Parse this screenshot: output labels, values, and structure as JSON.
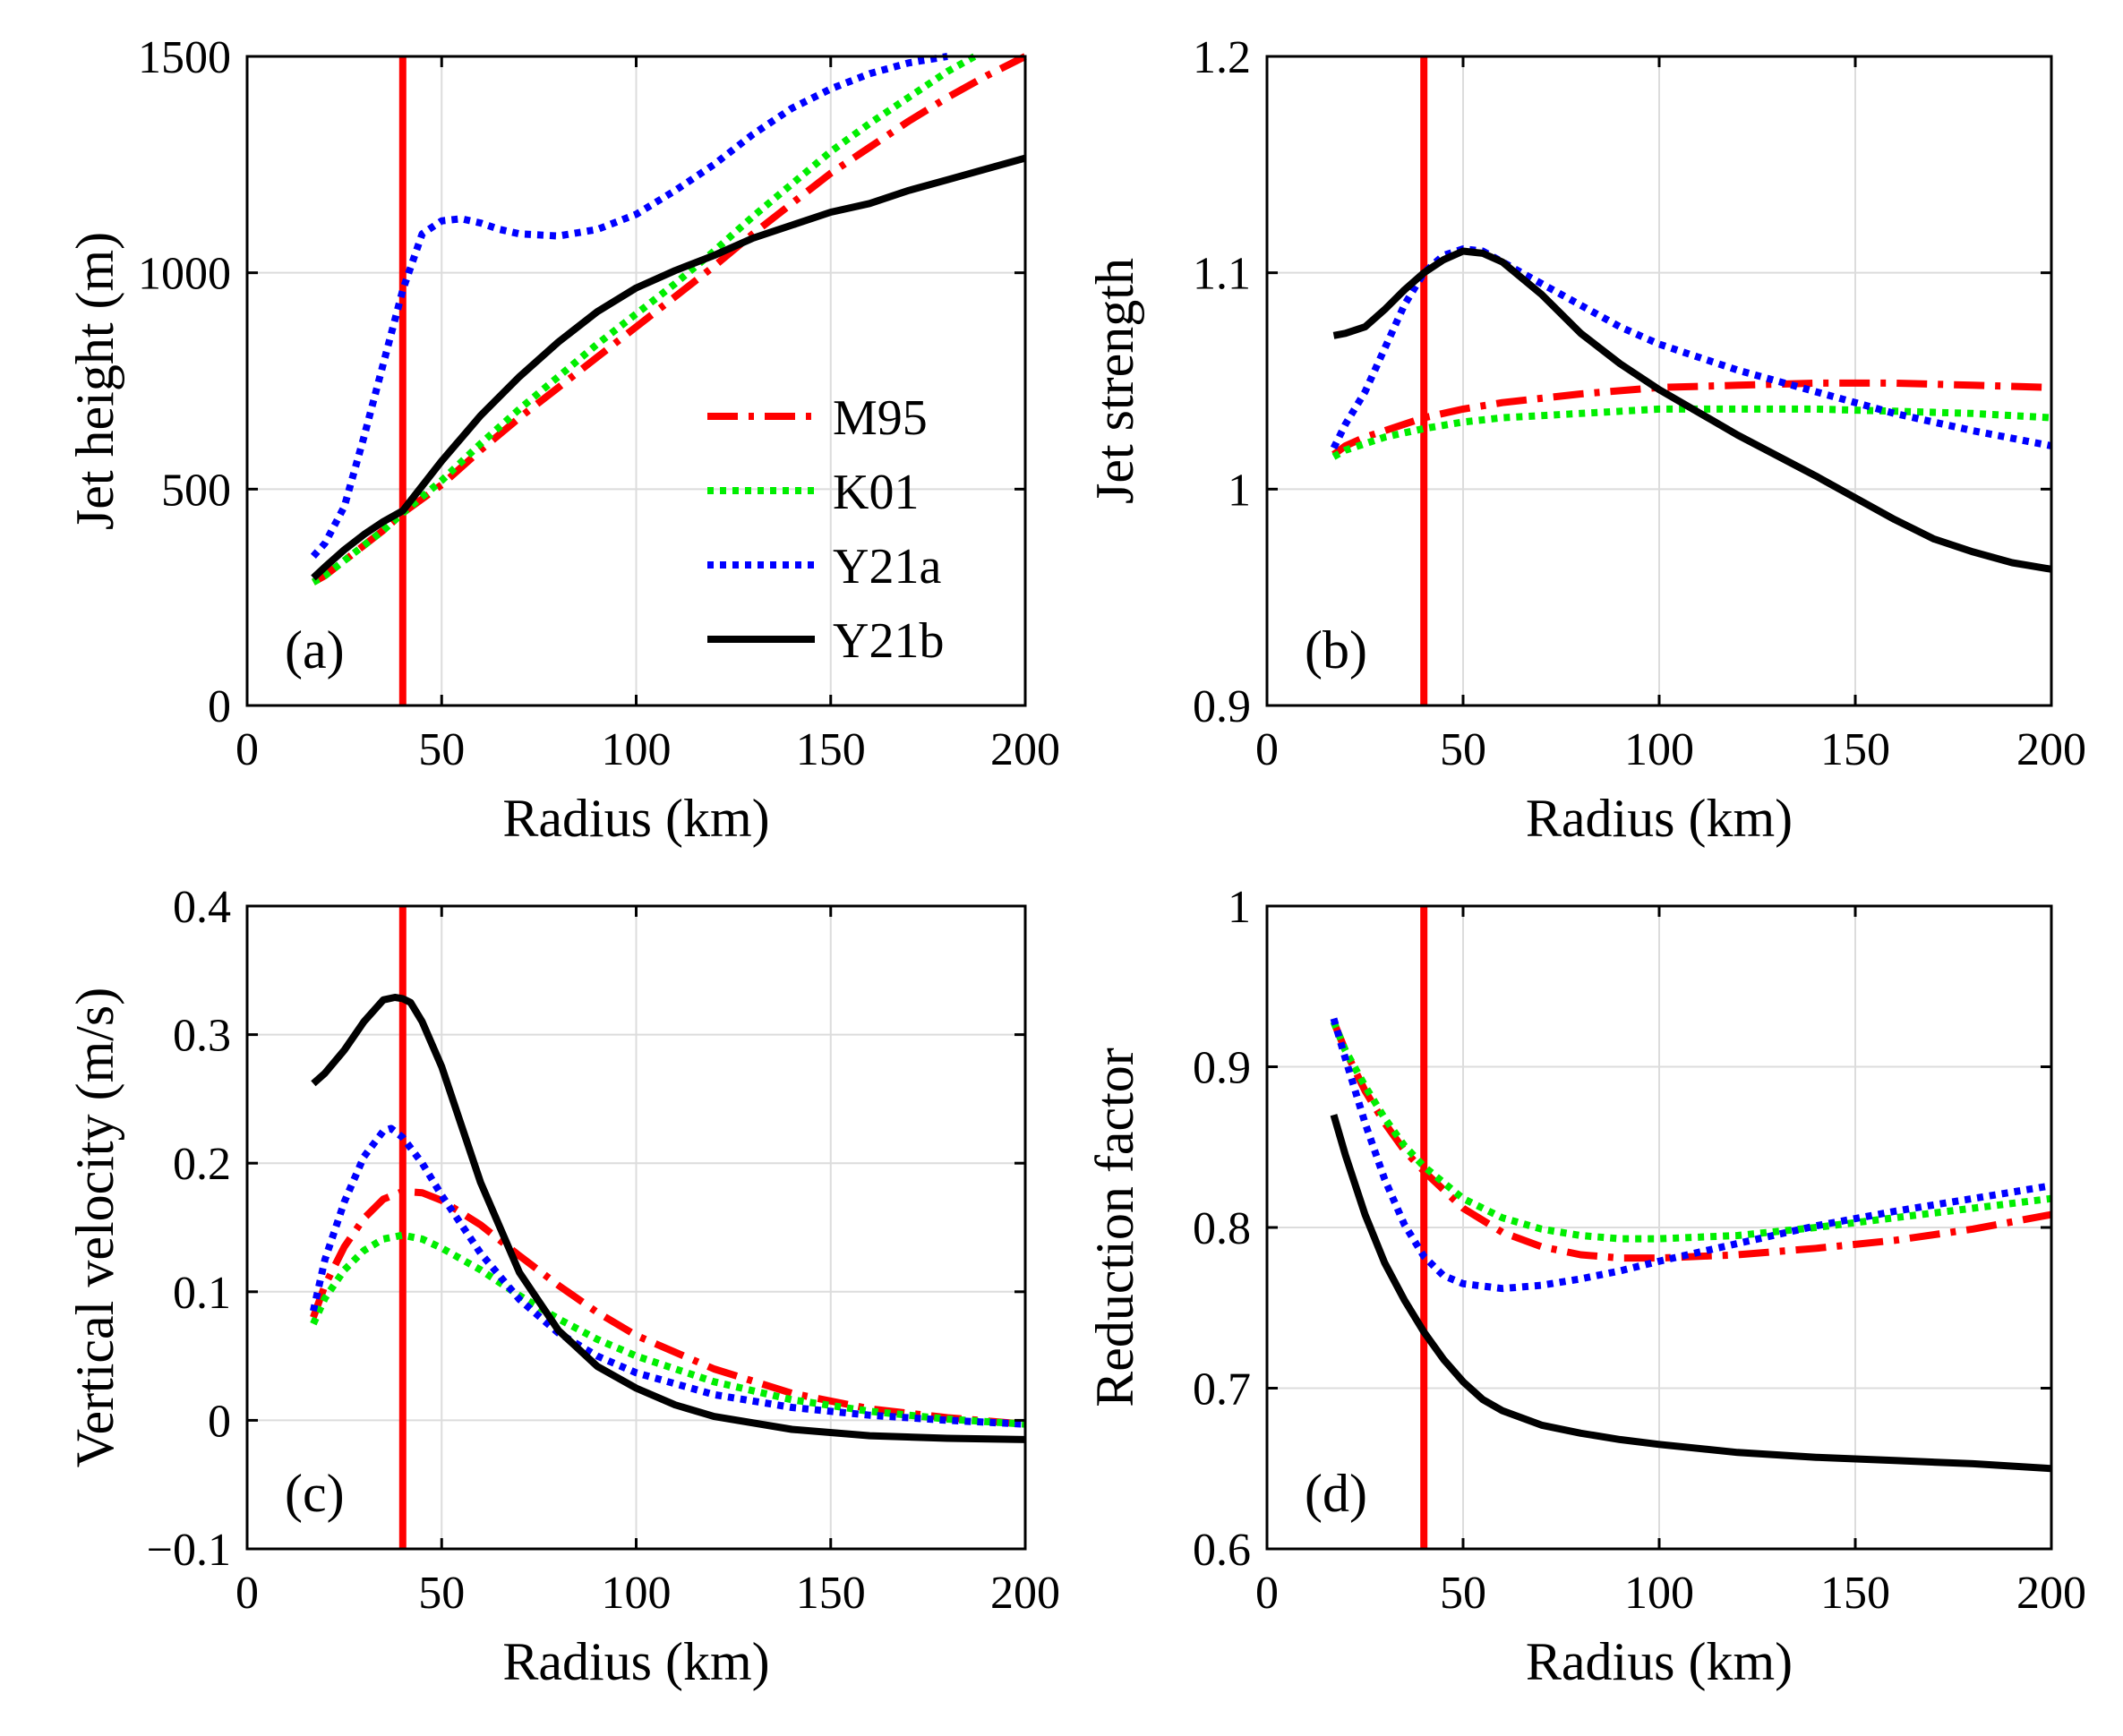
{
  "figure": {
    "legend_position": "center-right of panel (a)",
    "reference_line": {
      "x": 40,
      "color": "#ff0000",
      "label": ""
    },
    "series_styles": [
      {
        "name": "M95",
        "color": "#ff0000",
        "dash": "dashdot"
      },
      {
        "name": "K01",
        "color": "#00ee00",
        "dash": "dotted"
      },
      {
        "name": "Y21a",
        "color": "#0000ff",
        "dash": "dotted"
      },
      {
        "name": "Y21b",
        "color": "#000000",
        "dash": "solid"
      }
    ]
  },
  "chart_data": [
    {
      "type": "line",
      "panel_label": "(a)",
      "xlabel": "Radius (km)",
      "ylabel": "Jet height (m)",
      "xlim": [
        0,
        200
      ],
      "ylim": [
        0,
        1500
      ],
      "xticks": [
        0,
        50,
        100,
        150,
        200
      ],
      "yticks": [
        0,
        500,
        1000,
        1500
      ],
      "ytick_labels": [
        "0",
        "500",
        "1000",
        "1500"
      ],
      "grid": true,
      "legend": [
        "M95",
        "K01",
        "Y21a",
        "Y21b"
      ],
      "series": [
        {
          "name": "M95",
          "x": [
            17,
            20,
            25,
            30,
            35,
            40,
            50,
            60,
            70,
            80,
            90,
            100,
            110,
            120,
            130,
            140,
            150,
            160,
            170,
            180,
            190,
            200
          ],
          "y": [
            285,
            300,
            335,
            370,
            405,
            445,
            510,
            590,
            665,
            735,
            805,
            875,
            945,
            1015,
            1090,
            1160,
            1230,
            1290,
            1350,
            1405,
            1455,
            1500
          ]
        },
        {
          "name": "K01",
          "x": [
            17,
            20,
            25,
            30,
            35,
            40,
            50,
            60,
            70,
            80,
            90,
            100,
            110,
            120,
            130,
            140,
            150,
            160,
            170,
            180,
            187
          ],
          "y": [
            285,
            300,
            335,
            370,
            405,
            445,
            520,
            605,
            685,
            760,
            835,
            905,
            975,
            1050,
            1130,
            1205,
            1280,
            1345,
            1405,
            1465,
            1500
          ]
        },
        {
          "name": "Y21a",
          "x": [
            17,
            20,
            25,
            30,
            35,
            40,
            45,
            50,
            55,
            60,
            65,
            70,
            80,
            90,
            100,
            110,
            120,
            130,
            140,
            150,
            160,
            170,
            180
          ],
          "y": [
            345,
            375,
            460,
            620,
            790,
            960,
            1090,
            1120,
            1125,
            1115,
            1100,
            1090,
            1085,
            1100,
            1135,
            1190,
            1250,
            1320,
            1380,
            1425,
            1460,
            1485,
            1500
          ]
        },
        {
          "name": "Y21b",
          "x": [
            17,
            20,
            25,
            30,
            35,
            40,
            50,
            60,
            70,
            80,
            90,
            100,
            110,
            120,
            130,
            140,
            150,
            160,
            170,
            180,
            190,
            200
          ],
          "y": [
            295,
            320,
            360,
            395,
            425,
            450,
            565,
            670,
            760,
            840,
            910,
            965,
            1005,
            1040,
            1080,
            1110,
            1140,
            1160,
            1190,
            1215,
            1240,
            1265
          ]
        }
      ]
    },
    {
      "type": "line",
      "panel_label": "(b)",
      "xlabel": "Radius (km)",
      "ylabel": "Jet strength",
      "xlim": [
        0,
        200
      ],
      "ylim": [
        0.9,
        1.2
      ],
      "xticks": [
        0,
        50,
        100,
        150,
        200
      ],
      "yticks": [
        0.9,
        1.0,
        1.1,
        1.2
      ],
      "ytick_labels": [
        "0.9",
        "1",
        "1.1",
        "1.2"
      ],
      "grid": true,
      "series": [
        {
          "name": "M95",
          "x": [
            17,
            20,
            25,
            30,
            40,
            50,
            60,
            80,
            100,
            120,
            140,
            160,
            180,
            200
          ],
          "y": [
            1.016,
            1.02,
            1.024,
            1.027,
            1.033,
            1.037,
            1.04,
            1.044,
            1.047,
            1.048,
            1.049,
            1.049,
            1.048,
            1.047
          ]
        },
        {
          "name": "K01",
          "x": [
            17,
            20,
            25,
            30,
            40,
            50,
            60,
            80,
            100,
            120,
            140,
            160,
            180,
            200
          ],
          "y": [
            1.015,
            1.018,
            1.021,
            1.024,
            1.028,
            1.031,
            1.033,
            1.035,
            1.037,
            1.037,
            1.037,
            1.036,
            1.035,
            1.033
          ]
        },
        {
          "name": "Y21a",
          "x": [
            17,
            20,
            25,
            30,
            35,
            40,
            45,
            50,
            55,
            60,
            70,
            80,
            90,
            100,
            120,
            140,
            160,
            180,
            200
          ],
          "y": [
            1.019,
            1.03,
            1.045,
            1.065,
            1.085,
            1.1,
            1.108,
            1.111,
            1.11,
            1.105,
            1.095,
            1.085,
            1.075,
            1.067,
            1.055,
            1.045,
            1.035,
            1.027,
            1.02
          ]
        },
        {
          "name": "Y21b",
          "x": [
            17,
            20,
            25,
            30,
            35,
            40,
            45,
            50,
            55,
            60,
            70,
            80,
            90,
            100,
            120,
            140,
            160,
            170,
            180,
            190,
            200
          ],
          "y": [
            1.071,
            1.072,
            1.075,
            1.083,
            1.092,
            1.1,
            1.106,
            1.11,
            1.109,
            1.105,
            1.09,
            1.072,
            1.058,
            1.046,
            1.025,
            1.006,
            0.986,
            0.977,
            0.971,
            0.966,
            0.963
          ]
        }
      ]
    },
    {
      "type": "line",
      "panel_label": "(c)",
      "xlabel": "Radius (km)",
      "ylabel": "Vertical velocity (m/s)",
      "xlim": [
        0,
        200
      ],
      "ylim": [
        -0.1,
        0.4
      ],
      "xticks": [
        0,
        50,
        100,
        150,
        200
      ],
      "yticks": [
        -0.1,
        0,
        0.1,
        0.2,
        0.3,
        0.4
      ],
      "ytick_labels": [
        "−0.1",
        "0",
        "0.1",
        "0.2",
        "0.3",
        "0.4"
      ],
      "grid": true,
      "series": [
        {
          "name": "M95",
          "x": [
            17,
            20,
            25,
            30,
            35,
            40,
            45,
            50,
            60,
            70,
            80,
            90,
            100,
            120,
            140,
            160,
            180,
            200
          ],
          "y": [
            0.08,
            0.105,
            0.135,
            0.157,
            0.172,
            0.178,
            0.177,
            0.171,
            0.152,
            0.128,
            0.105,
            0.084,
            0.066,
            0.04,
            0.021,
            0.009,
            0.002,
            -0.003
          ]
        },
        {
          "name": "K01",
          "x": [
            17,
            20,
            25,
            30,
            35,
            40,
            45,
            50,
            60,
            70,
            80,
            90,
            100,
            120,
            140,
            160,
            180,
            200
          ],
          "y": [
            0.075,
            0.095,
            0.117,
            0.132,
            0.141,
            0.144,
            0.141,
            0.134,
            0.117,
            0.097,
            0.079,
            0.063,
            0.05,
            0.03,
            0.016,
            0.007,
            0.001,
            -0.003
          ]
        },
        {
          "name": "Y21a",
          "x": [
            17,
            20,
            25,
            30,
            35,
            37,
            40,
            45,
            50,
            60,
            70,
            80,
            90,
            100,
            120,
            140,
            160,
            180,
            200
          ],
          "y": [
            0.085,
            0.125,
            0.17,
            0.205,
            0.225,
            0.227,
            0.22,
            0.2,
            0.175,
            0.13,
            0.094,
            0.068,
            0.05,
            0.037,
            0.02,
            0.01,
            0.004,
            0.0,
            -0.003
          ]
        },
        {
          "name": "Y21b",
          "x": [
            17,
            20,
            25,
            30,
            35,
            38,
            40,
            42,
            45,
            50,
            55,
            60,
            70,
            80,
            90,
            100,
            110,
            120,
            140,
            160,
            180,
            200
          ],
          "y": [
            0.262,
            0.27,
            0.288,
            0.31,
            0.327,
            0.329,
            0.328,
            0.325,
            0.31,
            0.275,
            0.23,
            0.185,
            0.115,
            0.07,
            0.042,
            0.025,
            0.012,
            0.003,
            -0.007,
            -0.012,
            -0.014,
            -0.015
          ]
        }
      ]
    },
    {
      "type": "line",
      "panel_label": "(d)",
      "xlabel": "Radius (km)",
      "ylabel": "Reduction factor",
      "xlim": [
        0,
        200
      ],
      "ylim": [
        0.6,
        1.0
      ],
      "xticks": [
        0,
        50,
        100,
        150,
        200
      ],
      "yticks": [
        0.6,
        0.7,
        0.8,
        0.9,
        1.0
      ],
      "ytick_labels": [
        "0.6",
        "0.7",
        "0.8",
        "0.9",
        "1"
      ],
      "grid": true,
      "series": [
        {
          "name": "M95",
          "x": [
            17,
            20,
            25,
            30,
            35,
            40,
            50,
            60,
            70,
            80,
            90,
            100,
            120,
            140,
            160,
            180,
            200
          ],
          "y": [
            0.928,
            0.91,
            0.885,
            0.865,
            0.848,
            0.835,
            0.812,
            0.797,
            0.788,
            0.783,
            0.781,
            0.781,
            0.783,
            0.787,
            0.792,
            0.799,
            0.808
          ]
        },
        {
          "name": "K01",
          "x": [
            17,
            20,
            25,
            30,
            35,
            40,
            50,
            60,
            70,
            80,
            90,
            100,
            120,
            140,
            160,
            180,
            200
          ],
          "y": [
            0.928,
            0.91,
            0.888,
            0.868,
            0.851,
            0.838,
            0.818,
            0.806,
            0.799,
            0.795,
            0.793,
            0.793,
            0.795,
            0.8,
            0.806,
            0.812,
            0.818
          ]
        },
        {
          "name": "Y21a",
          "x": [
            17,
            20,
            25,
            30,
            35,
            40,
            45,
            50,
            60,
            70,
            80,
            90,
            100,
            120,
            140,
            160,
            180,
            200
          ],
          "y": [
            0.93,
            0.905,
            0.865,
            0.83,
            0.802,
            0.782,
            0.77,
            0.765,
            0.762,
            0.764,
            0.768,
            0.773,
            0.779,
            0.79,
            0.801,
            0.81,
            0.818,
            0.826
          ]
        },
        {
          "name": "Y21b",
          "x": [
            17,
            20,
            25,
            30,
            35,
            40,
            45,
            50,
            55,
            60,
            70,
            80,
            90,
            100,
            120,
            140,
            160,
            180,
            200
          ],
          "y": [
            0.87,
            0.845,
            0.808,
            0.778,
            0.755,
            0.735,
            0.718,
            0.704,
            0.693,
            0.686,
            0.677,
            0.672,
            0.668,
            0.665,
            0.66,
            0.657,
            0.655,
            0.653,
            0.65
          ]
        }
      ]
    }
  ]
}
